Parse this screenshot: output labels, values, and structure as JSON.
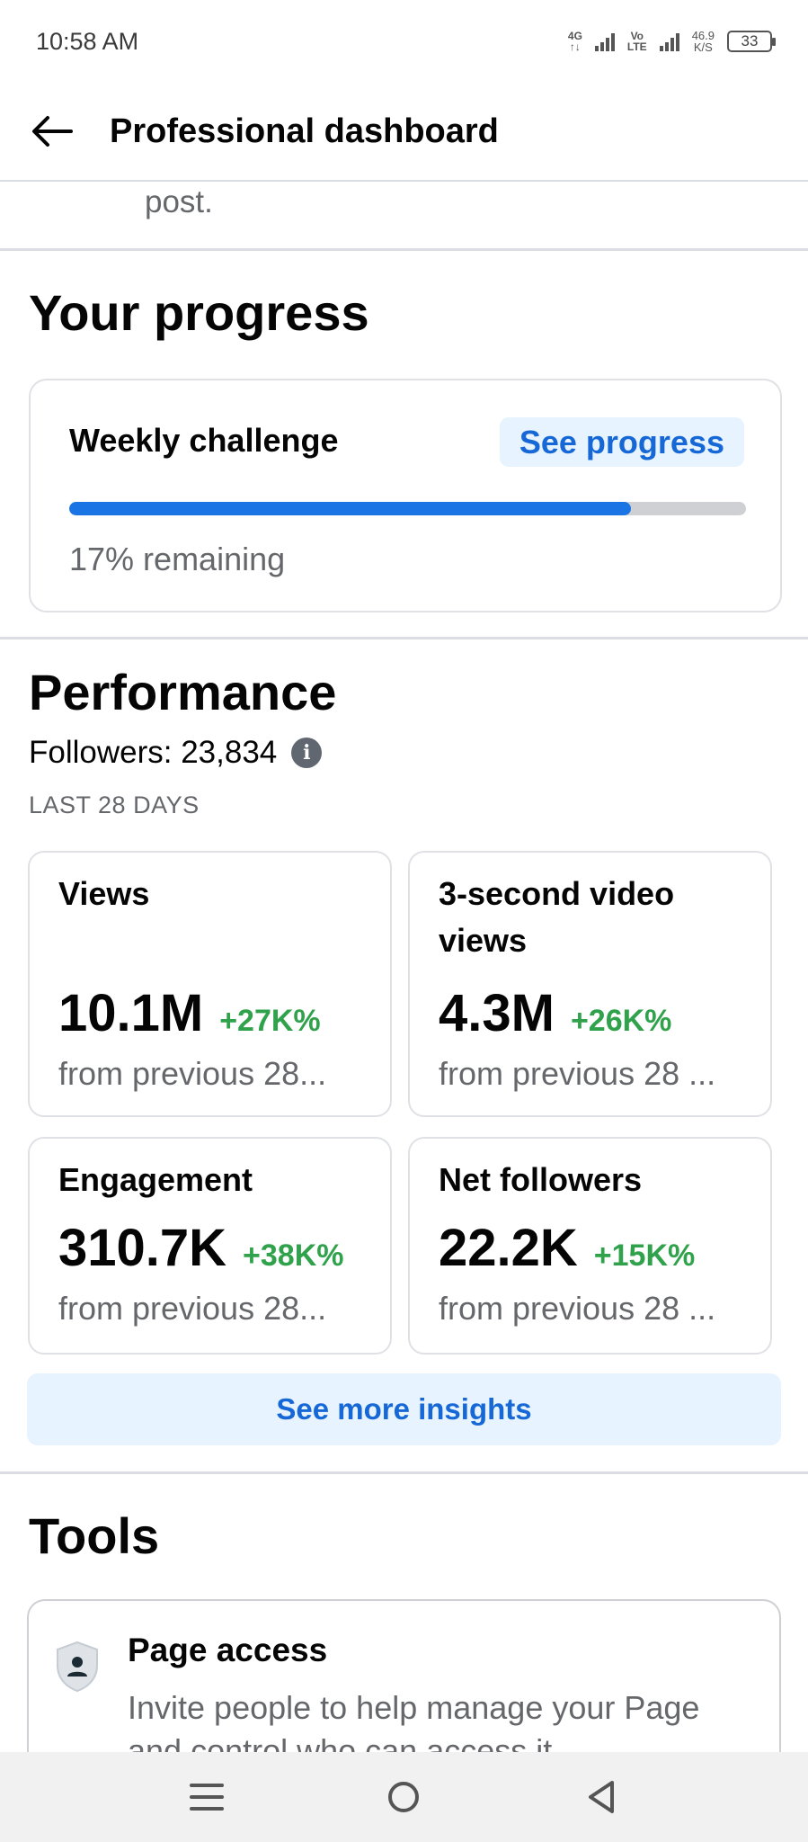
{
  "status_bar": {
    "time": "10:58 AM",
    "network_1": "4G",
    "network_2_top": "Vo",
    "network_2_bottom": "LTE",
    "speed_value": "46.9",
    "speed_unit": "K/S",
    "battery": "33"
  },
  "header": {
    "back_icon": "arrow-left-icon",
    "title": "Professional dashboard"
  },
  "post_fragment": "post.",
  "progress": {
    "title": "Your progress",
    "card_title": "Weekly challenge",
    "see_progress_label": "See progress",
    "completed_fraction": 0.83,
    "remaining_text": "17% remaining",
    "accent": "#1b74e4"
  },
  "performance": {
    "title": "Performance",
    "followers_text": "Followers: 23,834",
    "info_icon": "info-icon",
    "period": "LAST 28 DAYS",
    "metrics": [
      {
        "label": "Views",
        "value": "10.1M",
        "change": "+27K%",
        "sub": "from previous 28..."
      },
      {
        "label": "3-second video views",
        "value": "4.3M",
        "change": "+26K%",
        "sub": "from previous 28 ..."
      },
      {
        "label": "Engagement",
        "value": "310.7K",
        "change": "+38K%",
        "sub": "from previous 28..."
      },
      {
        "label": "Net followers",
        "value": "22.2K",
        "change": "+15K%",
        "sub": "from previous 28 ..."
      }
    ],
    "positive_color": "#31a24c",
    "insights_button": "See more insights"
  },
  "tools": {
    "title": "Tools",
    "items": [
      {
        "icon": "shield-person-icon",
        "title": "Page access",
        "description": "Invite people to help manage your Page and control who can access it"
      }
    ]
  },
  "nav": {
    "menu_icon": "menu-icon",
    "home_icon": "home-circle-icon",
    "back_icon": "back-triangle-icon"
  }
}
